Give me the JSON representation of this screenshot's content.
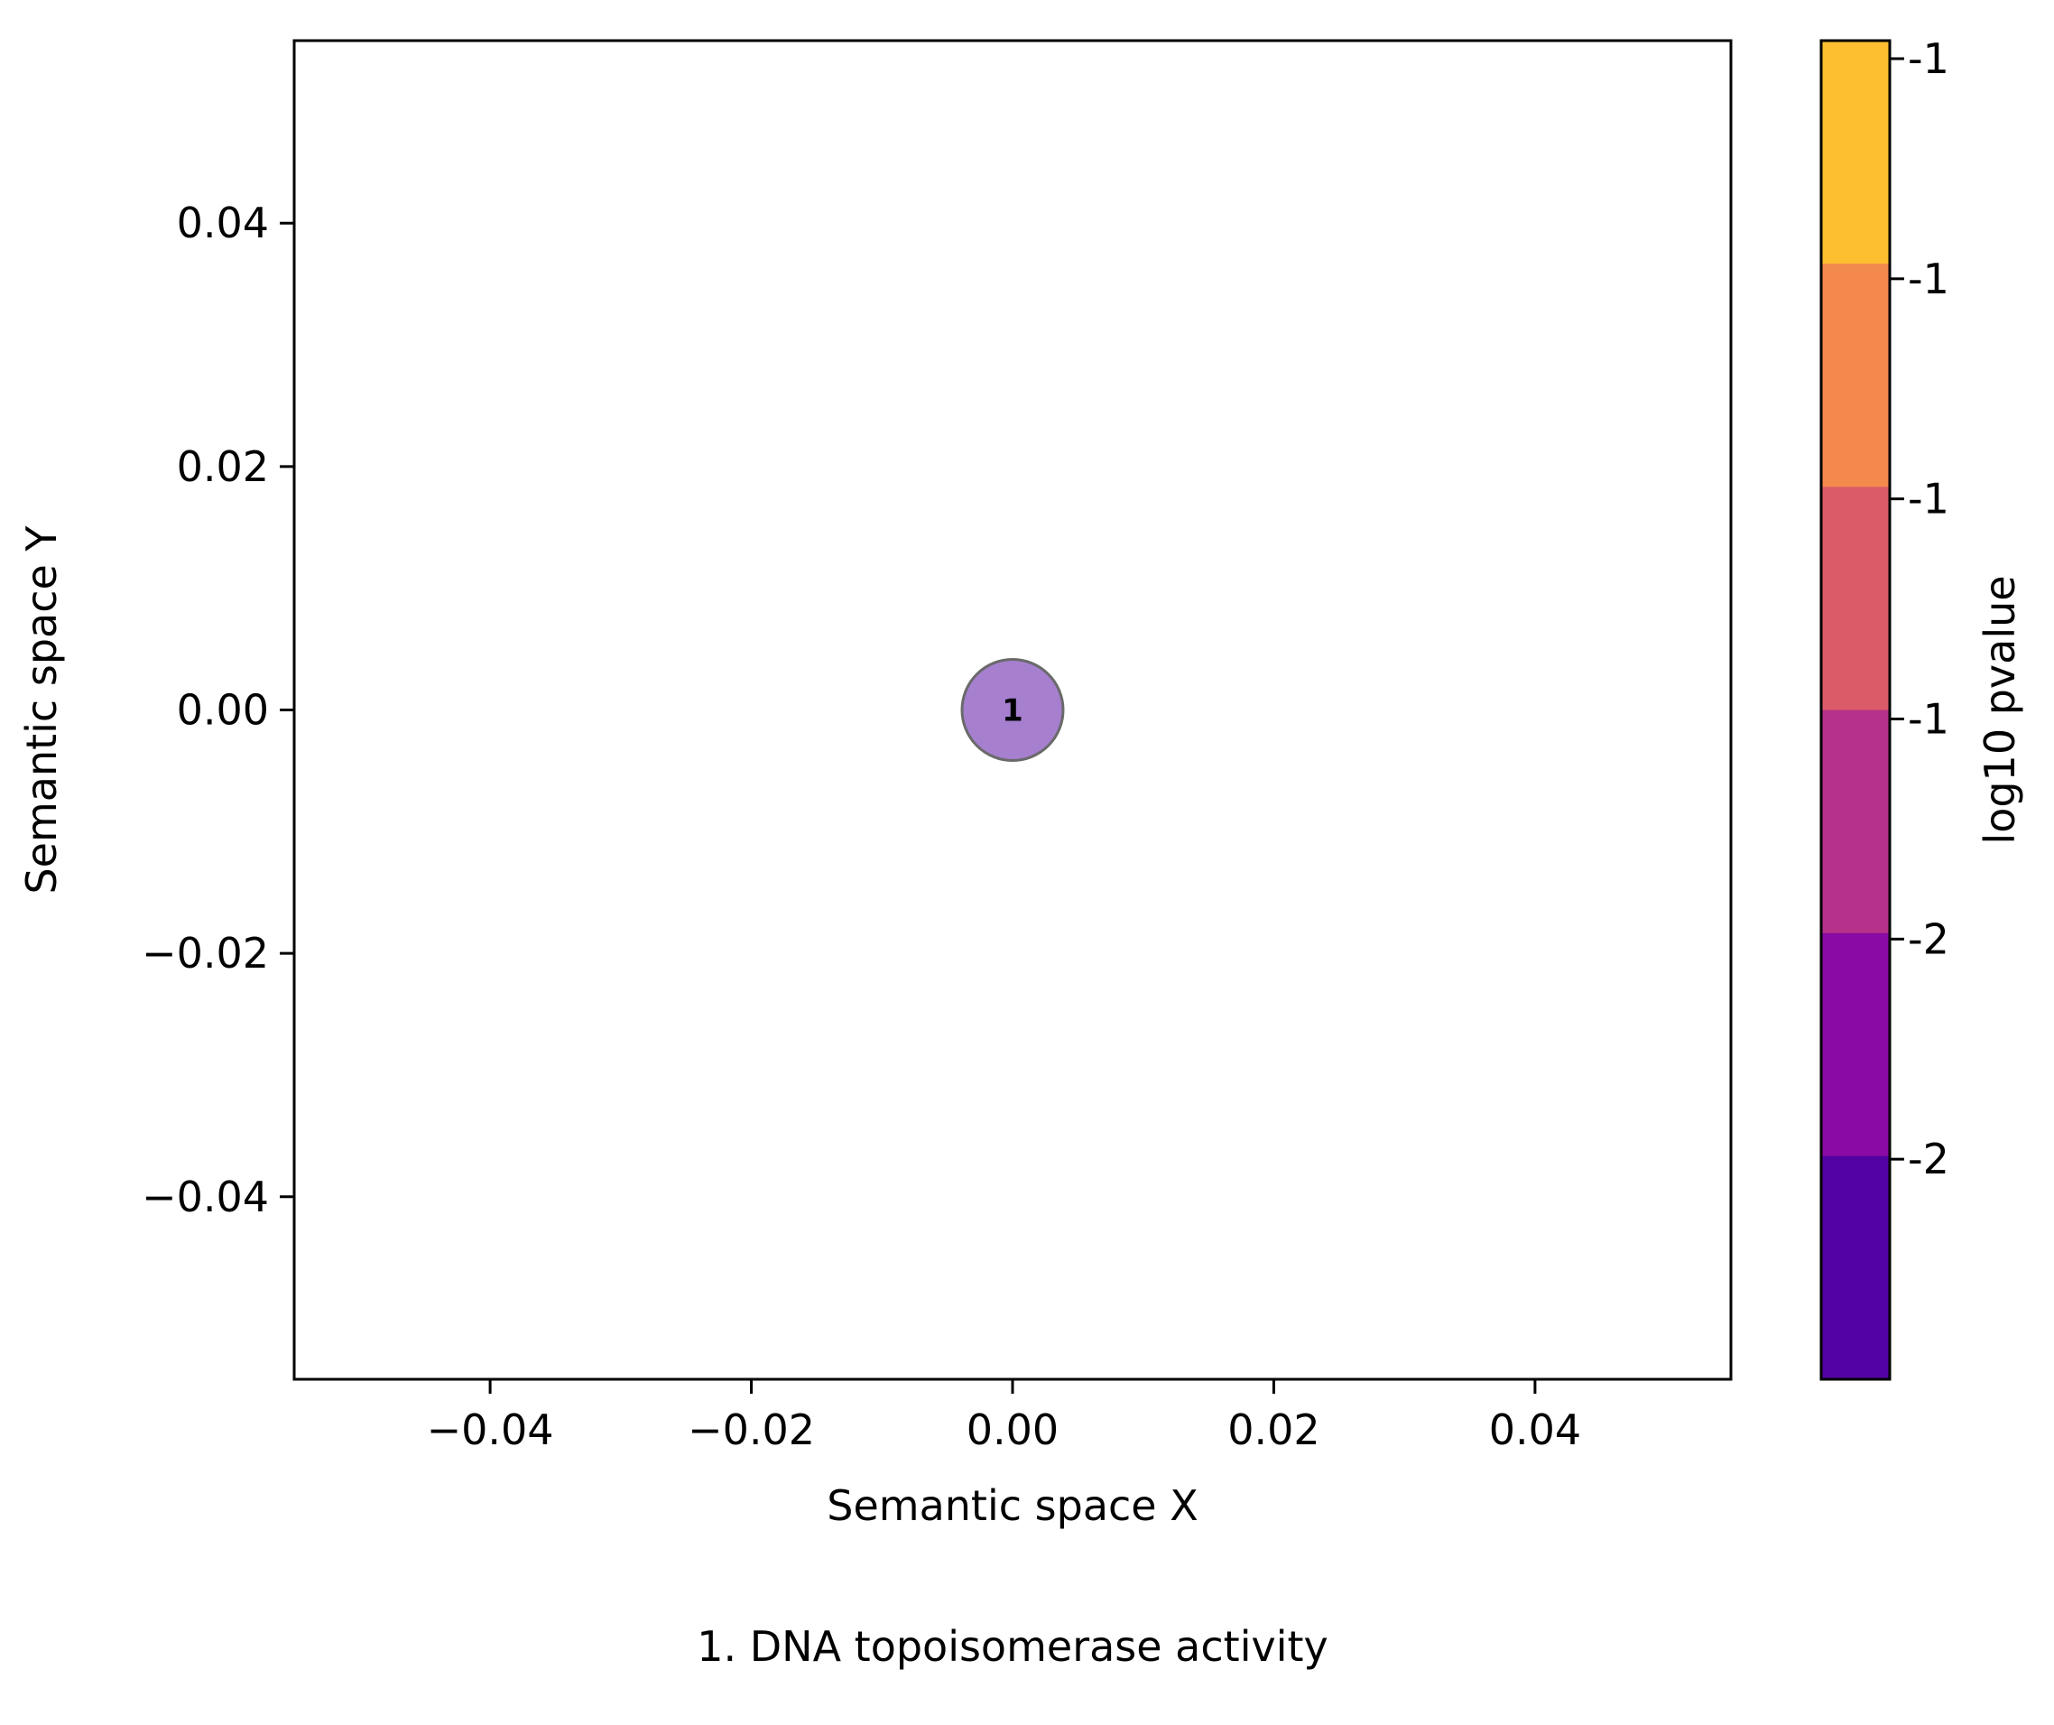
{
  "chart_data": {
    "type": "scatter",
    "xlabel": "Semantic space X",
    "ylabel": "Semantic space Y",
    "xlim": [
      -0.055,
      0.055
    ],
    "ylim": [
      -0.055,
      0.055
    ],
    "x_ticks": [
      -0.04,
      -0.02,
      0.0,
      0.02,
      0.04
    ],
    "x_tick_labels": [
      "−0.04",
      "−0.02",
      "0.00",
      "0.02",
      "0.04"
    ],
    "y_ticks": [
      0.04,
      0.02,
      0.0,
      -0.02,
      -0.04
    ],
    "y_tick_labels": [
      "0.04",
      "0.02",
      "0.00",
      "−0.02",
      "−0.04"
    ],
    "grid": false,
    "points": [
      {
        "label": "1",
        "x": 0.0,
        "y": 0.0,
        "color": "#a67fcf"
      }
    ],
    "colorbar": {
      "label": "log10 pvalue",
      "colors": [
        "#fdbf2f",
        "#f3894d",
        "#db5c68",
        "#b6328a",
        "#8a0aa5",
        "#5302a3"
      ],
      "tick_labels": [
        "-1",
        "-1",
        "-1",
        "-1",
        "-2",
        "-2"
      ]
    },
    "legend_caption": "1. DNA topoisomerase activity"
  }
}
